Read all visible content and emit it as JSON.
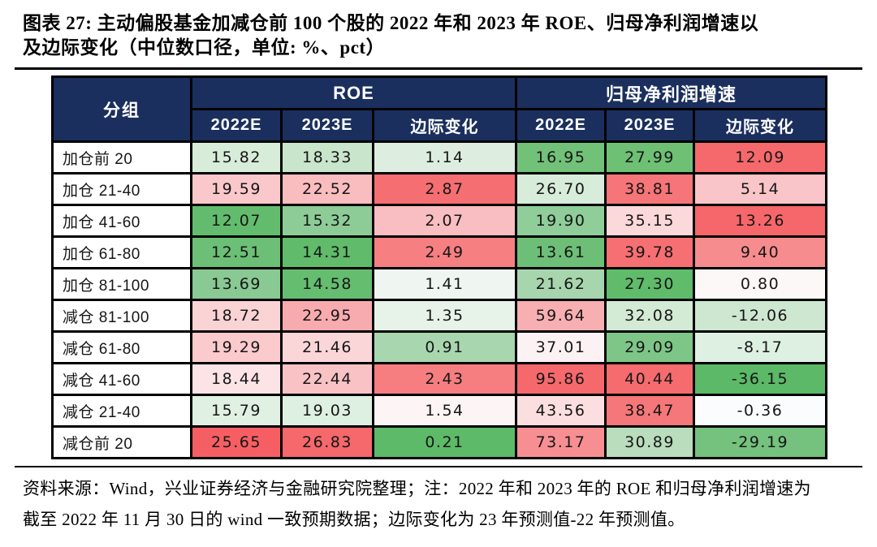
{
  "page": {
    "title_line1": "图表 27: 主动偏股基金加减仓前 100 个股的 2022 年和 2023 年 ROE、归母净利润增速以",
    "title_line2": "及边际变化（中位数口径，单位: %、pct）",
    "footer_line1": "资料来源：Wind，兴业证券经济与金融研究院整理；注：2022 年和 2023 年的 ROE 和归母净利润增速为",
    "footer_line2": "截至 2022 年 11 月 30 日的 wind 一致预期数据；边际变化为 23 年预测值-22 年预测值。"
  },
  "colors": {
    "header_bg": "#1b2f5e",
    "header_text": "#ffffff",
    "border": "#000000",
    "strong_green": "#5cb967",
    "strong_red": "#f5696c"
  },
  "table": {
    "header": {
      "group": "分组",
      "roe": "ROE",
      "growth": "归母净利润增速",
      "sub": [
        "2022E",
        "2023E",
        "边际变化",
        "2022E",
        "2023E",
        "边际变化"
      ]
    },
    "rows": [
      {
        "group": "加仓前 20",
        "cells": [
          {
            "v": "15.82",
            "bg": "#d8ecda"
          },
          {
            "v": "18.33",
            "bg": "#c9e5cc"
          },
          {
            "v": "1.14",
            "bg": "#ddeee0"
          },
          {
            "v": "16.95",
            "bg": "#72c178"
          },
          {
            "v": "27.99",
            "bg": "#6ec075"
          },
          {
            "v": "12.09",
            "bg": "#f5696c"
          }
        ]
      },
      {
        "group": "加仓 21-40",
        "cells": [
          {
            "v": "19.59",
            "bg": "#fac8cb"
          },
          {
            "v": "22.52",
            "bg": "#f9bcbf"
          },
          {
            "v": "2.87",
            "bg": "#f56e71"
          },
          {
            "v": "26.70",
            "bg": "#d7ecd9"
          },
          {
            "v": "38.81",
            "bg": "#f67578"
          },
          {
            "v": "5.14",
            "bg": "#f9c5c8"
          }
        ]
      },
      {
        "group": "加仓 41-60",
        "cells": [
          {
            "v": "12.07",
            "bg": "#63bc6e"
          },
          {
            "v": "15.32",
            "bg": "#8ecc97"
          },
          {
            "v": "2.07",
            "bg": "#f9bec1"
          },
          {
            "v": "19.90",
            "bg": "#8fcd99"
          },
          {
            "v": "35.15",
            "bg": "#fbd8da"
          },
          {
            "v": "13.26",
            "bg": "#f5676a"
          }
        ]
      },
      {
        "group": "加仓 61-80",
        "cells": [
          {
            "v": "12.51",
            "bg": "#6cbf76"
          },
          {
            "v": "14.31",
            "bg": "#60bb6b"
          },
          {
            "v": "2.49",
            "bg": "#f67f82"
          },
          {
            "v": "13.61",
            "bg": "#6dbf77"
          },
          {
            "v": "39.78",
            "bg": "#f66f72"
          },
          {
            "v": "9.40",
            "bg": "#f68c8e"
          }
        ]
      },
      {
        "group": "加仓 81-100",
        "cells": [
          {
            "v": "13.69",
            "bg": "#89c993"
          },
          {
            "v": "14.58",
            "bg": "#65bd70"
          },
          {
            "v": "1.41",
            "bg": "#eff6f1"
          },
          {
            "v": "21.62",
            "bg": "#a7d5ad"
          },
          {
            "v": "27.30",
            "bg": "#60bb6b"
          },
          {
            "v": "0.80",
            "bg": "#fdf8f8"
          }
        ]
      },
      {
        "group": "减仓 81-100",
        "cells": [
          {
            "v": "18.72",
            "bg": "#fad3d5"
          },
          {
            "v": "22.95",
            "bg": "#f8abae"
          },
          {
            "v": "1.35",
            "bg": "#e7f3e9"
          },
          {
            "v": "59.64",
            "bg": "#f8afb2"
          },
          {
            "v": "32.08",
            "bg": "#d3ead5"
          },
          {
            "v": "-12.06",
            "bg": "#cde7d0"
          }
        ]
      },
      {
        "group": "减仓 61-80",
        "cells": [
          {
            "v": "19.29",
            "bg": "#facacd"
          },
          {
            "v": "21.46",
            "bg": "#fbd6d8"
          },
          {
            "v": "0.91",
            "bg": "#a8d7af"
          },
          {
            "v": "37.01",
            "bg": "#fdf2f3"
          },
          {
            "v": "29.09",
            "bg": "#7ec687"
          },
          {
            "v": "-8.17",
            "bg": "#def0e2"
          }
        ]
      },
      {
        "group": "减仓 41-60",
        "cells": [
          {
            "v": "18.44",
            "bg": "#fce3e5"
          },
          {
            "v": "22.44",
            "bg": "#f9c2c5"
          },
          {
            "v": "2.43",
            "bg": "#f67e80"
          },
          {
            "v": "95.86",
            "bg": "#f5696c"
          },
          {
            "v": "40.44",
            "bg": "#f56b6e"
          },
          {
            "v": "-36.15",
            "bg": "#5cb967"
          }
        ]
      },
      {
        "group": "减仓 21-40",
        "cells": [
          {
            "v": "15.79",
            "bg": "#e0f0e3"
          },
          {
            "v": "19.03",
            "bg": "#def0e1"
          },
          {
            "v": "1.54",
            "bg": "#fdf4f5"
          },
          {
            "v": "43.56",
            "bg": "#fbdee0"
          },
          {
            "v": "38.47",
            "bg": "#f67779"
          },
          {
            "v": "-0.36",
            "bg": "#fbfcfd"
          }
        ]
      },
      {
        "group": "减仓前 20",
        "cells": [
          {
            "v": "25.65",
            "bg": "#f55f63"
          },
          {
            "v": "26.83",
            "bg": "#f5686b"
          },
          {
            "v": "0.21",
            "bg": "#5dba68"
          },
          {
            "v": "73.17",
            "bg": "#f78f92"
          },
          {
            "v": "30.89",
            "bg": "#b9ddbd"
          },
          {
            "v": "-29.19",
            "bg": "#74c27d"
          }
        ]
      }
    ]
  },
  "chart_data": {
    "type": "table",
    "title": "图表 27: 主动偏股基金加减仓前 100 个股的 2022 年和 2023 年 ROE、归母净利润增速以及边际变化（中位数口径，单位: %、pct）",
    "column_groups": [
      "分组",
      "ROE",
      "归母净利润增速"
    ],
    "columns": [
      "分组",
      "ROE 2022E",
      "ROE 2023E",
      "ROE 边际变化",
      "归母净利润增速 2022E",
      "归母净利润增速 2023E",
      "归母净利润增速 边际变化"
    ],
    "rows": [
      {
        "group": "加仓前 20",
        "values": [
          15.82,
          18.33,
          1.14,
          16.95,
          27.99,
          12.09
        ]
      },
      {
        "group": "加仓 21-40",
        "values": [
          19.59,
          22.52,
          2.87,
          26.7,
          38.81,
          5.14
        ]
      },
      {
        "group": "加仓 41-60",
        "values": [
          12.07,
          15.32,
          2.07,
          19.9,
          35.15,
          13.26
        ]
      },
      {
        "group": "加仓 61-80",
        "values": [
          12.51,
          14.31,
          2.49,
          13.61,
          39.78,
          9.4
        ]
      },
      {
        "group": "加仓 81-100",
        "values": [
          13.69,
          14.58,
          1.41,
          21.62,
          27.3,
          0.8
        ]
      },
      {
        "group": "减仓 81-100",
        "values": [
          18.72,
          22.95,
          1.35,
          59.64,
          32.08,
          -12.06
        ]
      },
      {
        "group": "减仓 61-80",
        "values": [
          19.29,
          21.46,
          0.91,
          37.01,
          29.09,
          -8.17
        ]
      },
      {
        "group": "减仓 41-60",
        "values": [
          18.44,
          22.44,
          2.43,
          95.86,
          40.44,
          -36.15
        ]
      },
      {
        "group": "减仓 21-40",
        "values": [
          15.79,
          19.03,
          1.54,
          43.56,
          38.47,
          -0.36
        ]
      },
      {
        "group": "减仓前 20",
        "values": [
          25.65,
          26.83,
          0.21,
          73.17,
          30.89,
          -29.19
        ]
      }
    ],
    "heatmap": "red-white-green conditional formatting per column; green = low ROE / negative growth change, red = high values",
    "source_note": "资料来源：Wind，兴业证券经济与金融研究院整理；注：2022 年和 2023 年的 ROE 和归母净利润增速为截至 2022 年 11 月 30 日的 wind 一致预期数据；边际变化为 23 年预测值-22 年预测值。"
  }
}
